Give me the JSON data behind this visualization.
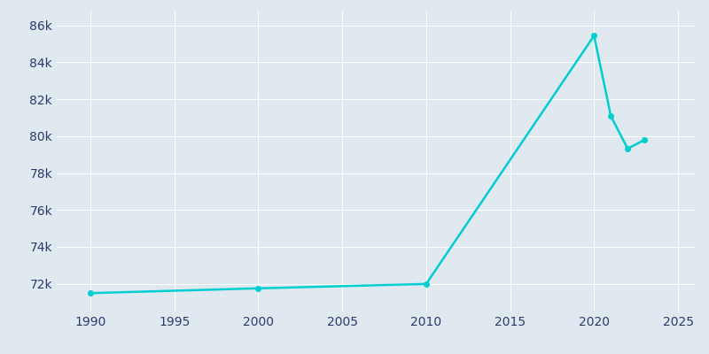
{
  "years": [
    1990,
    2000,
    2010,
    2020,
    2021,
    2022,
    2023
  ],
  "population": [
    71496,
    71757,
    71993,
    85442,
    81086,
    79324,
    79795
  ],
  "line_color": "#00CED1",
  "bg_color": "#E0E8F0",
  "grid_color": "#FFFFFF",
  "text_color": "#2B3A6B",
  "xlim": [
    1988,
    2026
  ],
  "ylim": [
    70500,
    86800
  ],
  "xticks": [
    1990,
    1995,
    2000,
    2005,
    2010,
    2015,
    2020,
    2025
  ],
  "ytick_values": [
    72000,
    74000,
    76000,
    78000,
    80000,
    82000,
    84000,
    86000
  ],
  "linewidth": 1.8,
  "marker": "o",
  "markersize": 4
}
